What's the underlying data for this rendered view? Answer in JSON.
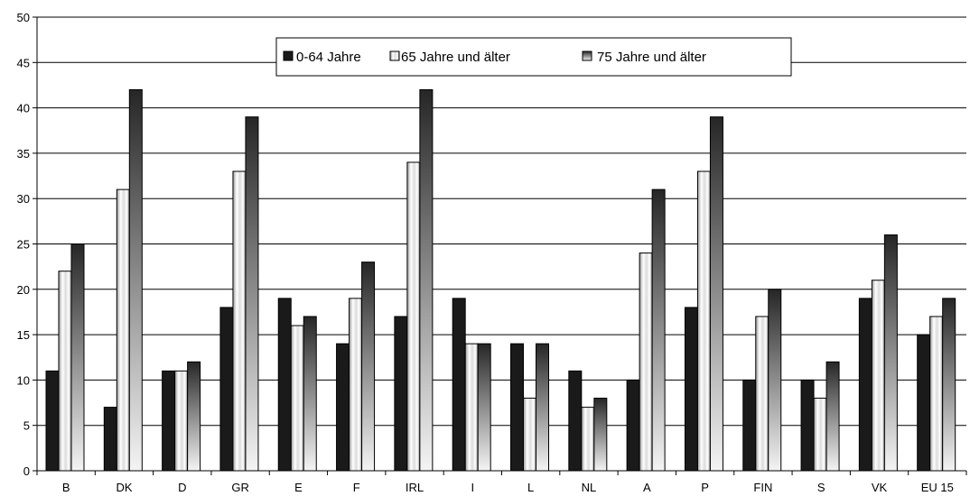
{
  "chart_data": {
    "type": "bar",
    "title": "",
    "xlabel": "",
    "ylabel": "",
    "ylim": [
      0,
      50
    ],
    "yticks": [
      0,
      5,
      10,
      15,
      20,
      25,
      30,
      35,
      40,
      45,
      50
    ],
    "grid": true,
    "legend_position": "top-center",
    "categories": [
      "B",
      "DK",
      "D",
      "GR",
      "E",
      "F",
      "IRL",
      "I",
      "L",
      "NL",
      "A",
      "P",
      "FIN",
      "S",
      "VK",
      "EU 15"
    ],
    "series": [
      {
        "name": "0-64 Jahre",
        "values": [
          11,
          7,
          11,
          18,
          19,
          14,
          17,
          19,
          14,
          11,
          10,
          18,
          10,
          10,
          19,
          15
        ]
      },
      {
        "name": "65 Jahre und älter",
        "values": [
          22,
          31,
          11,
          33,
          16,
          19,
          34,
          14,
          8,
          7,
          24,
          33,
          17,
          8,
          21,
          17
        ]
      },
      {
        "name": "75 Jahre und älter",
        "values": [
          25,
          42,
          12,
          39,
          17,
          23,
          42,
          14,
          14,
          8,
          31,
          39,
          20,
          12,
          26,
          19
        ]
      }
    ]
  },
  "legend": {
    "labels": [
      "0-64 Jahre",
      "65 Jahre und älter",
      "75 Jahre und älter"
    ]
  },
  "colors": {
    "grid": "#000000",
    "series1": "#1a1a1a",
    "series2_light": "#ffffff",
    "series2_dark": "#8c8c8c",
    "series3_dark": "#222222",
    "series3_light": "#f2f2f2"
  }
}
